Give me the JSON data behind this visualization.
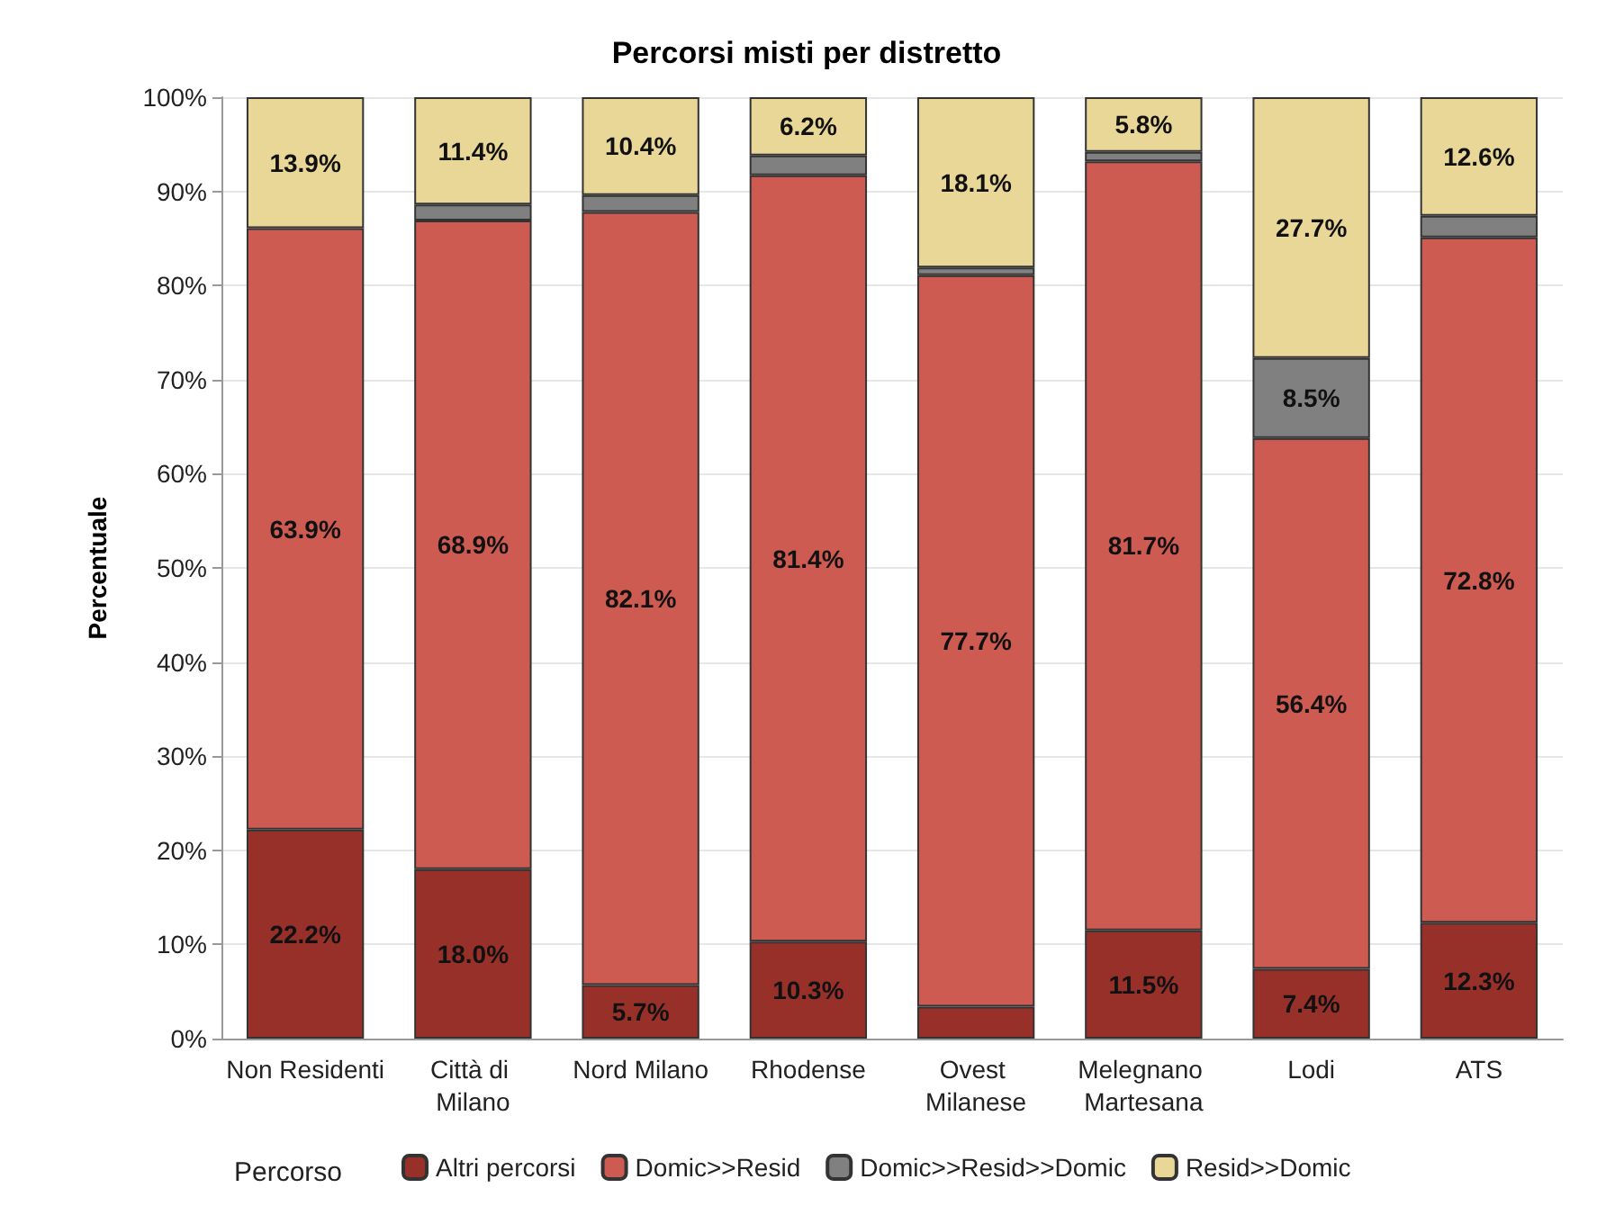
{
  "chart_data": {
    "type": "bar",
    "stacked": true,
    "title": "Percorsi misti per distretto",
    "ylabel": "Percentuale",
    "legend_title": "Percorso",
    "legend": "bottom",
    "grid": "y",
    "categories": [
      "Non Residenti",
      "Città di Milano",
      "Nord Milano",
      "Rhodense",
      "Ovest Milanese",
      "Melegnano Martesana",
      "Lodi",
      "ATS"
    ],
    "ylim": [
      0,
      100
    ],
    "yticks": [
      {
        "value": 0,
        "label": "0%"
      },
      {
        "value": 10,
        "label": "10%"
      },
      {
        "value": 20,
        "label": "20%"
      },
      {
        "value": 30,
        "label": "30%"
      },
      {
        "value": 40,
        "label": "40%"
      },
      {
        "value": 50,
        "label": "50%"
      },
      {
        "value": 60,
        "label": "60%"
      },
      {
        "value": 70,
        "label": "70%"
      },
      {
        "value": 80,
        "label": "80%"
      },
      {
        "value": 90,
        "label": "90%"
      },
      {
        "value": 100,
        "label": "100%"
      }
    ],
    "series": [
      {
        "name": "Altri percorsi",
        "color": "#98302a",
        "values": [
          22.2,
          18.0,
          5.7,
          10.3,
          3.4,
          11.5,
          7.4,
          12.3
        ],
        "value_labels": [
          "22.2%",
          "18.0%",
          "5.7%",
          "10.3%",
          null,
          "11.5%",
          "7.4%",
          "12.3%"
        ]
      },
      {
        "name": "Domic>>Resid",
        "color": "#cd5b51",
        "values": [
          63.9,
          68.9,
          82.1,
          81.4,
          77.7,
          81.7,
          56.4,
          72.8
        ],
        "value_labels": [
          "63.9%",
          "68.9%",
          "82.1%",
          "81.4%",
          "77.7%",
          "81.7%",
          "56.4%",
          "72.8%"
        ]
      },
      {
        "name": "Domic>>Resid>>Domic",
        "color": "#808080",
        "values": [
          null,
          1.7,
          1.8,
          2.1,
          0.8,
          1.0,
          8.5,
          2.3
        ],
        "value_labels": [
          null,
          null,
          null,
          null,
          null,
          null,
          "8.5%",
          null
        ]
      },
      {
        "name": "Resid>>Domic",
        "color": "#e8d796",
        "values": [
          13.9,
          11.4,
          10.4,
          6.2,
          18.1,
          5.8,
          27.7,
          12.6
        ],
        "value_labels": [
          "13.9%",
          "11.4%",
          "10.4%",
          "6.2%",
          "18.1%",
          "5.8%",
          "27.7%",
          "12.6%"
        ]
      }
    ]
  }
}
